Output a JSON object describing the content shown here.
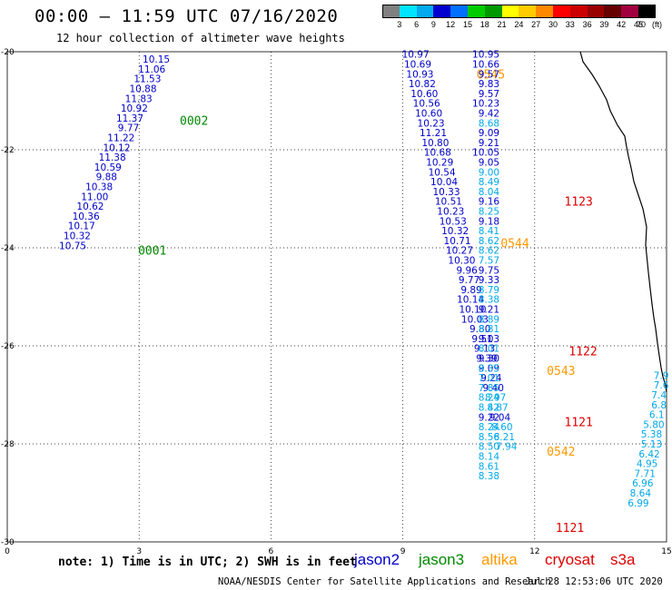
{
  "header": {
    "title": "00:00 – 11:59 UTC 07/16/2020",
    "subtitle": "12 hour collection of altimeter wave heights"
  },
  "colorbar": {
    "labels": [
      "3",
      "6",
      "9",
      "12",
      "15",
      "18",
      "21",
      "24",
      "27",
      "30",
      "33",
      "36",
      "39",
      "42",
      "45",
      "70"
    ],
    "unit": "(ft)",
    "colors": [
      "#808080",
      "#00e5ff",
      "#00aaee",
      "#0000d0",
      "#0070ff",
      "#00cc00",
      "#009900",
      "#ffff00",
      "#ffcc00",
      "#ff8800",
      "#ff0000",
      "#cc0000",
      "#990000",
      "#660000",
      "#a00040",
      "#000000"
    ]
  },
  "map": {
    "x_ticks": [
      "0",
      "3",
      "6",
      "9",
      "12",
      "15"
    ],
    "y_ticks": [
      "-20",
      "-22",
      "-24",
      "-26",
      "-28",
      "-30"
    ],
    "x_range": [
      0,
      15
    ],
    "y_range": [
      -20,
      -30
    ],
    "grid": "dotted"
  },
  "track_colors": {
    "dark": "#0000c8",
    "light": "#00a8e8",
    "jason2": "#0000c8",
    "jason3": "#008800",
    "altika": "#ff9900",
    "cryosat": "#dd0000"
  },
  "tracks": [
    {
      "id": "track-a",
      "points": [
        {
          "lon": 3.7,
          "lat": -20.15,
          "v": "10.15",
          "c": "dark"
        },
        {
          "lon": 3.6,
          "lat": -20.35,
          "v": "11.06",
          "c": "dark"
        },
        {
          "lon": 3.5,
          "lat": -20.55,
          "v": "11.53",
          "c": "dark"
        },
        {
          "lon": 3.4,
          "lat": -20.75,
          "v": "10.88",
          "c": "dark"
        },
        {
          "lon": 3.3,
          "lat": -20.95,
          "v": "11.83",
          "c": "dark"
        },
        {
          "lon": 3.2,
          "lat": -21.15,
          "v": "10.92",
          "c": "dark"
        },
        {
          "lon": 3.1,
          "lat": -21.35,
          "v": "11.37",
          "c": "dark"
        },
        {
          "lon": 3.0,
          "lat": -21.55,
          "v": "9.77",
          "c": "dark"
        },
        {
          "lon": 2.9,
          "lat": -21.75,
          "v": "11.22",
          "c": "dark"
        },
        {
          "lon": 2.8,
          "lat": -21.95,
          "v": "10.12",
          "c": "dark"
        },
        {
          "lon": 2.7,
          "lat": -22.15,
          "v": "11.38",
          "c": "dark"
        },
        {
          "lon": 2.6,
          "lat": -22.35,
          "v": "10.59",
          "c": "dark"
        },
        {
          "lon": 2.5,
          "lat": -22.55,
          "v": "9.88",
          "c": "dark"
        },
        {
          "lon": 2.4,
          "lat": -22.75,
          "v": "10.38",
          "c": "dark"
        },
        {
          "lon": 2.3,
          "lat": -22.95,
          "v": "11.00",
          "c": "dark"
        },
        {
          "lon": 2.2,
          "lat": -23.15,
          "v": "10.62",
          "c": "dark"
        },
        {
          "lon": 2.1,
          "lat": -23.35,
          "v": "10.36",
          "c": "dark"
        },
        {
          "lon": 2.0,
          "lat": -23.55,
          "v": "10.17",
          "c": "dark"
        },
        {
          "lon": 1.9,
          "lat": -23.75,
          "v": "10.32",
          "c": "dark"
        },
        {
          "lon": 1.8,
          "lat": -23.95,
          "v": "10.75",
          "c": "dark"
        }
      ],
      "passes": [
        {
          "label": "0002",
          "lon": 4.25,
          "lat": -21.4,
          "sat": "jason3"
        },
        {
          "label": "0001",
          "lon": 3.3,
          "lat": -24.05,
          "sat": "jason3"
        }
      ]
    },
    {
      "id": "track-b",
      "points": [
        {
          "lon": 9.6,
          "lat": -20.05,
          "v": "10.97",
          "c": "dark"
        },
        {
          "lon": 9.65,
          "lat": -20.25,
          "v": "10.69",
          "c": "dark"
        },
        {
          "lon": 9.7,
          "lat": -20.45,
          "v": "10.93",
          "c": "dark"
        },
        {
          "lon": 9.75,
          "lat": -20.65,
          "v": "10.82",
          "c": "dark"
        },
        {
          "lon": 9.8,
          "lat": -20.85,
          "v": "10.60",
          "c": "dark"
        },
        {
          "lon": 9.85,
          "lat": -21.05,
          "v": "10.56",
          "c": "dark"
        },
        {
          "lon": 9.9,
          "lat": -21.25,
          "v": "10.60",
          "c": "dark"
        },
        {
          "lon": 9.95,
          "lat": -21.45,
          "v": "10.23",
          "c": "dark"
        },
        {
          "lon": 10.0,
          "lat": -21.65,
          "v": "11.21",
          "c": "dark"
        },
        {
          "lon": 10.05,
          "lat": -21.85,
          "v": "10.80",
          "c": "dark"
        },
        {
          "lon": 10.1,
          "lat": -22.05,
          "v": "10.68",
          "c": "dark"
        },
        {
          "lon": 10.15,
          "lat": -22.25,
          "v": "10.29",
          "c": "dark"
        },
        {
          "lon": 10.2,
          "lat": -22.45,
          "v": "10.54",
          "c": "dark"
        },
        {
          "lon": 10.25,
          "lat": -22.65,
          "v": "10.04",
          "c": "dark"
        },
        {
          "lon": 10.3,
          "lat": -22.85,
          "v": "10.33",
          "c": "dark"
        },
        {
          "lon": 10.35,
          "lat": -23.05,
          "v": "10.51",
          "c": "dark"
        },
        {
          "lon": 10.4,
          "lat": -23.25,
          "v": "10.23",
          "c": "dark"
        },
        {
          "lon": 10.45,
          "lat": -23.45,
          "v": "10.53",
          "c": "dark"
        },
        {
          "lon": 10.5,
          "lat": -23.65,
          "v": "10.32",
          "c": "dark"
        },
        {
          "lon": 10.55,
          "lat": -23.85,
          "v": "10.71",
          "c": "dark"
        },
        {
          "lon": 10.6,
          "lat": -24.05,
          "v": "10.27",
          "c": "dark"
        },
        {
          "lon": 10.65,
          "lat": -24.25,
          "v": "10.30",
          "c": "dark"
        },
        {
          "lon": 10.7,
          "lat": -24.45,
          "v": "9.96",
          "c": "dark"
        },
        {
          "lon": 10.75,
          "lat": -24.65,
          "v": "9.77",
          "c": "dark"
        },
        {
          "lon": 10.8,
          "lat": -24.85,
          "v": "9.89",
          "c": "dark"
        },
        {
          "lon": 10.85,
          "lat": -25.05,
          "v": "10.14",
          "c": "dark"
        },
        {
          "lon": 10.9,
          "lat": -25.25,
          "v": "10.10",
          "c": "dark"
        },
        {
          "lon": 10.95,
          "lat": -25.45,
          "v": "10.03",
          "c": "dark"
        },
        {
          "lon": 11.0,
          "lat": -25.65,
          "v": "9.80",
          "c": "dark"
        },
        {
          "lon": 11.05,
          "lat": -25.85,
          "v": "9.51",
          "c": "dark"
        },
        {
          "lon": 11.1,
          "lat": -26.05,
          "v": "9.13",
          "c": "dark"
        },
        {
          "lon": 11.15,
          "lat": -26.25,
          "v": "9.39",
          "c": "dark"
        },
        {
          "lon": 11.2,
          "lat": -26.45,
          "v": "9.09",
          "c": "dark"
        },
        {
          "lon": 11.25,
          "lat": -26.65,
          "v": "9.24",
          "c": "dark"
        },
        {
          "lon": 11.3,
          "lat": -26.85,
          "v": "9.40",
          "c": "dark"
        },
        {
          "lon": 11.35,
          "lat": -27.05,
          "v": "8.97",
          "c": "light"
        },
        {
          "lon": 11.4,
          "lat": -27.25,
          "v": "8.87",
          "c": "light"
        },
        {
          "lon": 11.45,
          "lat": -27.45,
          "v": "9.04",
          "c": "dark"
        },
        {
          "lon": 11.5,
          "lat": -27.65,
          "v": "8.60",
          "c": "light"
        },
        {
          "lon": 11.55,
          "lat": -27.85,
          "v": "8.21",
          "c": "light"
        },
        {
          "lon": 11.6,
          "lat": -28.05,
          "v": "7.94",
          "c": "light"
        }
      ],
      "passes": [
        {
          "label": "0545",
          "lon": 11.0,
          "lat": -20.45,
          "sat": "altika"
        },
        {
          "label": "0544",
          "lon": 11.55,
          "lat": -23.9,
          "sat": "altika"
        },
        {
          "label": "0543",
          "lon": 12.6,
          "lat": -26.5,
          "sat": "altika"
        },
        {
          "label": "0542",
          "lon": 12.6,
          "lat": -28.15,
          "sat": "altika"
        }
      ]
    },
    {
      "id": "track-c",
      "points": [
        {
          "lon": 11.2,
          "lat": -20.05,
          "v": "10.95",
          "c": "dark"
        },
        {
          "lon": 11.2,
          "lat": -20.25,
          "v": "10.66",
          "c": "dark"
        },
        {
          "lon": 11.2,
          "lat": -20.45,
          "v": "9.57",
          "c": "dark"
        },
        {
          "lon": 11.2,
          "lat": -20.65,
          "v": "9.83",
          "c": "dark"
        },
        {
          "lon": 11.2,
          "lat": -20.85,
          "v": "9.57",
          "c": "dark"
        },
        {
          "lon": 11.2,
          "lat": -21.05,
          "v": "10.23",
          "c": "dark"
        },
        {
          "lon": 11.2,
          "lat": -21.25,
          "v": "9.42",
          "c": "dark"
        },
        {
          "lon": 11.2,
          "lat": -21.45,
          "v": "8.68",
          "c": "light"
        },
        {
          "lon": 11.2,
          "lat": -21.65,
          "v": "9.09",
          "c": "dark"
        },
        {
          "lon": 11.2,
          "lat": -21.85,
          "v": "9.21",
          "c": "dark"
        },
        {
          "lon": 11.2,
          "lat": -22.05,
          "v": "10.05",
          "c": "dark"
        },
        {
          "lon": 11.2,
          "lat": -22.25,
          "v": "9.05",
          "c": "dark"
        },
        {
          "lon": 11.2,
          "lat": -22.45,
          "v": "9.00",
          "c": "light"
        },
        {
          "lon": 11.2,
          "lat": -22.65,
          "v": "8.49",
          "c": "light"
        },
        {
          "lon": 11.2,
          "lat": -22.85,
          "v": "8.04",
          "c": "light"
        },
        {
          "lon": 11.2,
          "lat": -23.05,
          "v": "9.16",
          "c": "dark"
        },
        {
          "lon": 11.2,
          "lat": -23.25,
          "v": "8.25",
          "c": "light"
        },
        {
          "lon": 11.2,
          "lat": -23.45,
          "v": "9.18",
          "c": "dark"
        },
        {
          "lon": 11.2,
          "lat": -23.65,
          "v": "8.41",
          "c": "light"
        },
        {
          "lon": 11.2,
          "lat": -23.85,
          "v": "8.62",
          "c": "light"
        },
        {
          "lon": 11.2,
          "lat": -24.05,
          "v": "8.62",
          "c": "light"
        },
        {
          "lon": 11.2,
          "lat": -24.25,
          "v": "7.57",
          "c": "light"
        },
        {
          "lon": 11.2,
          "lat": -24.45,
          "v": "9.75",
          "c": "dark"
        },
        {
          "lon": 11.2,
          "lat": -24.65,
          "v": "9.33",
          "c": "dark"
        },
        {
          "lon": 11.2,
          "lat": -24.85,
          "v": "8.79",
          "c": "light"
        },
        {
          "lon": 11.2,
          "lat": -25.05,
          "v": "8.38",
          "c": "light"
        },
        {
          "lon": 11.2,
          "lat": -25.25,
          "v": "9.21",
          "c": "dark"
        },
        {
          "lon": 11.2,
          "lat": -25.45,
          "v": "8.89",
          "c": "light"
        },
        {
          "lon": 11.2,
          "lat": -25.65,
          "v": "8.81",
          "c": "light"
        },
        {
          "lon": 11.2,
          "lat": -25.85,
          "v": "9.03",
          "c": "dark"
        },
        {
          "lon": 11.2,
          "lat": -26.05,
          "v": "8.01",
          "c": "light"
        },
        {
          "lon": 11.2,
          "lat": -26.25,
          "v": "9.30",
          "c": "dark"
        },
        {
          "lon": 11.2,
          "lat": -26.45,
          "v": "8.35",
          "c": "light"
        },
        {
          "lon": 11.2,
          "lat": -26.65,
          "v": "7.01",
          "c": "light"
        },
        {
          "lon": 11.2,
          "lat": -26.85,
          "v": "7.85",
          "c": "light"
        },
        {
          "lon": 11.2,
          "lat": -27.05,
          "v": "8.24",
          "c": "light"
        },
        {
          "lon": 11.2,
          "lat": -27.25,
          "v": "8.42",
          "c": "light"
        },
        {
          "lon": 11.2,
          "lat": -27.45,
          "v": "9.22",
          "c": "dark"
        },
        {
          "lon": 11.2,
          "lat": -27.65,
          "v": "8.24",
          "c": "light"
        },
        {
          "lon": 11.2,
          "lat": -27.85,
          "v": "8.56",
          "c": "light"
        },
        {
          "lon": 11.2,
          "lat": -28.05,
          "v": "8.50",
          "c": "light"
        },
        {
          "lon": 11.2,
          "lat": -28.25,
          "v": "8.14",
          "c": "light"
        },
        {
          "lon": 11.2,
          "lat": -28.45,
          "v": "8.61",
          "c": "light"
        },
        {
          "lon": 11.2,
          "lat": -28.65,
          "v": "8.38",
          "c": "light"
        }
      ],
      "passes": [
        {
          "label": "1123",
          "lon": 13.0,
          "lat": -23.05,
          "sat": "cryosat"
        },
        {
          "label": "1122",
          "lon": 13.1,
          "lat": -26.1,
          "sat": "cryosat"
        },
        {
          "label": "1121",
          "lon": 13.0,
          "lat": -27.55,
          "sat": "cryosat"
        },
        {
          "label": "1121",
          "lon": 12.8,
          "lat": -29.7,
          "sat": "cryosat"
        }
      ]
    },
    {
      "id": "track-d",
      "points": [
        {
          "lon": 15.05,
          "lat": -26.6,
          "v": "7.9",
          "c": "light"
        },
        {
          "lon": 15.05,
          "lat": -26.8,
          "v": "7.6",
          "c": "light"
        },
        {
          "lon": 15.0,
          "lat": -27.0,
          "v": "7.4",
          "c": "light"
        },
        {
          "lon": 15.0,
          "lat": -27.2,
          "v": "6.8",
          "c": "light"
        },
        {
          "lon": 14.95,
          "lat": -27.4,
          "v": "6.1",
          "c": "light"
        },
        {
          "lon": 14.95,
          "lat": -27.6,
          "v": "5.80",
          "c": "light"
        },
        {
          "lon": 14.9,
          "lat": -27.8,
          "v": "5.38",
          "c": "light"
        },
        {
          "lon": 14.9,
          "lat": -28.0,
          "v": "5.13",
          "c": "light"
        },
        {
          "lon": 14.85,
          "lat": -28.2,
          "v": "6.42",
          "c": "light"
        },
        {
          "lon": 14.8,
          "lat": -28.4,
          "v": "4.95",
          "c": "light"
        },
        {
          "lon": 14.75,
          "lat": -28.6,
          "v": "7.71",
          "c": "light"
        },
        {
          "lon": 14.7,
          "lat": -28.8,
          "v": "6.96",
          "c": "light"
        },
        {
          "lon": 14.65,
          "lat": -29.0,
          "v": "8.64",
          "c": "light"
        },
        {
          "lon": 14.6,
          "lat": -29.2,
          "v": "6.99",
          "c": "light"
        }
      ],
      "passes": []
    }
  ],
  "footer": {
    "note": "note: 1) Time is in UTC; 2) SWH is in feet",
    "legend": [
      {
        "name": "jason2",
        "color": "#0000c8"
      },
      {
        "name": "jason3",
        "color": "#008800"
      },
      {
        "name": "altika",
        "color": "#ff9900"
      },
      {
        "name": "cryosat",
        "color": "#dd0000"
      },
      {
        "name": "s3a",
        "color": "#dd0000"
      }
    ],
    "credit": "NOAA/NESDIS Center for Satellite Applications and Research",
    "timestamp": "Jul 28 12:53:06 UTC 2020"
  }
}
